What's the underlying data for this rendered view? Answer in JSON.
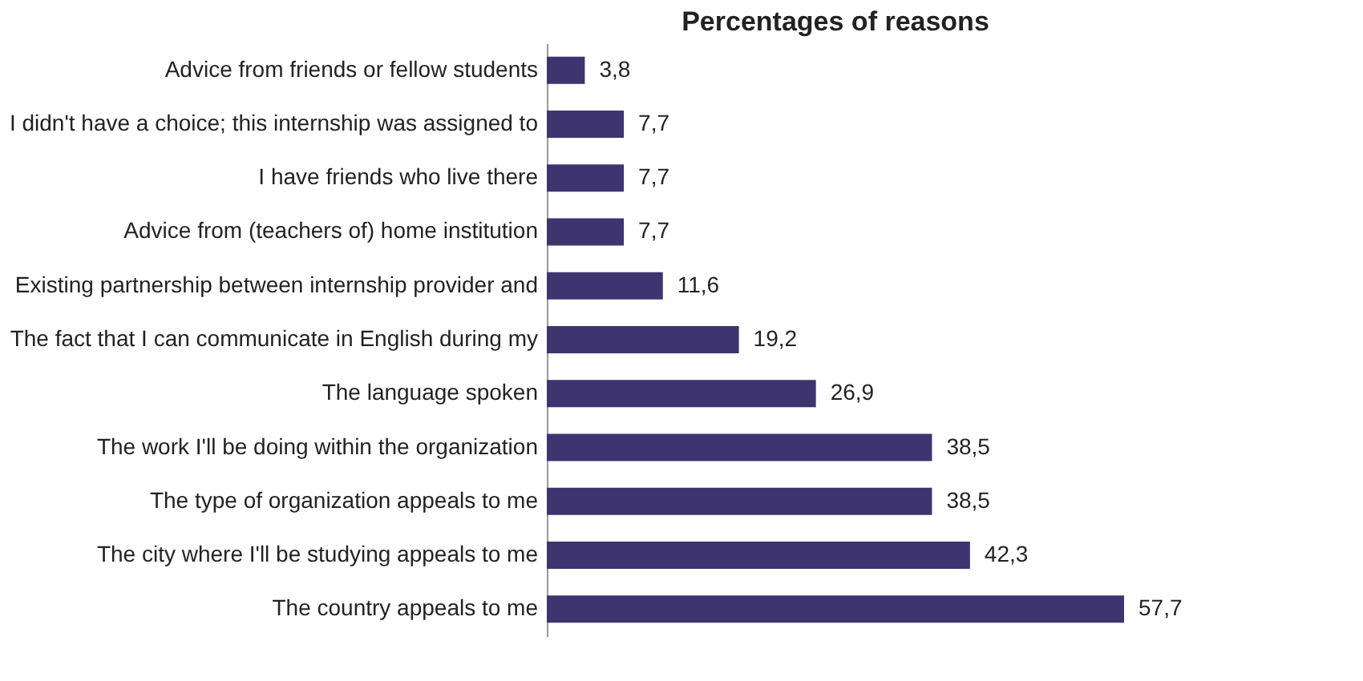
{
  "chart_data": {
    "type": "bar",
    "orientation": "horizontal",
    "title": "Percentages of reasons",
    "categories": [
      "Advice from friends or fellow students",
      "I didn't have a choice; this internship was assigned to",
      "I have friends who live there",
      "Advice from (teachers of) home institution",
      "Existing partnership between internship provider and",
      "The fact that I can communicate in English during my",
      "The language spoken",
      "The work I'll be doing within the organization",
      "The type of organization appeals to me",
      "The city where I'll be studying appeals to me",
      "The country appeals to me"
    ],
    "values": [
      3.8,
      7.7,
      7.7,
      7.7,
      11.6,
      19.2,
      26.9,
      38.5,
      38.5,
      42.3,
      57.7
    ],
    "value_labels": [
      "3,8",
      "7,7",
      "7,7",
      "7,7",
      "11,6",
      "19,2",
      "26,9",
      "38,5",
      "38,5",
      "42,3",
      "57,7"
    ],
    "color": "#3d3470",
    "grid": false
  }
}
